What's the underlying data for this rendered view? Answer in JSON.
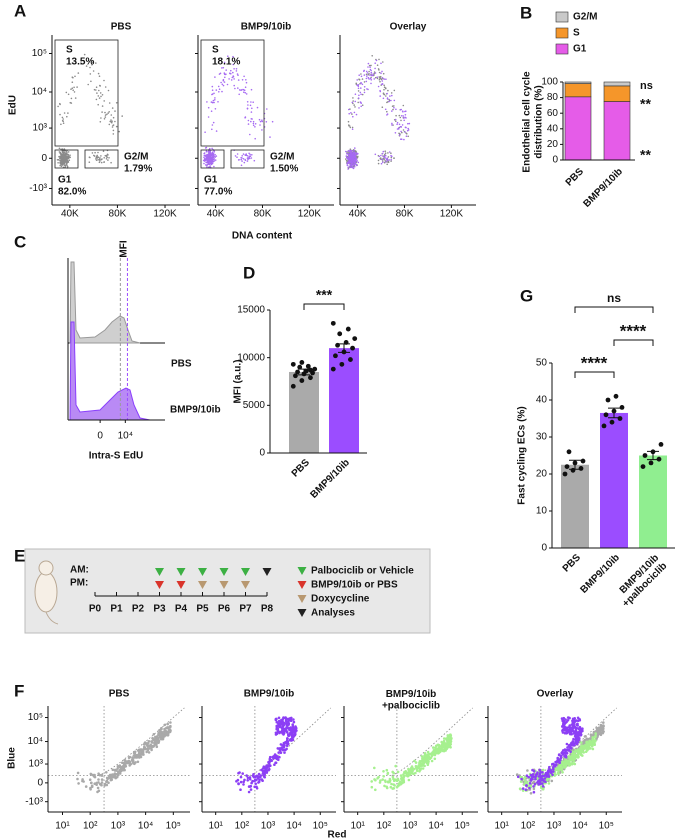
{
  "panel_labels": [
    "A",
    "B",
    "C",
    "D",
    "E",
    "F",
    "G"
  ],
  "chart_data": [
    {
      "type": "flow",
      "titles": [
        "PBS",
        "BMP9/10ib",
        "Overlay"
      ],
      "ylabel": "EdU",
      "xlabel": "DNA content",
      "colors": [
        "#8a8a8a",
        "#a66bf2"
      ],
      "ylim": [
        -3000,
        300000
      ],
      "yticks": [
        {
          "value": 100000,
          "label": "10⁵"
        },
        {
          "value": 10000,
          "label": "10⁴"
        },
        {
          "value": 1000,
          "label": "10³"
        },
        0,
        {
          "value": -1000,
          "label": "-10³"
        }
      ],
      "xlim": [
        25000,
        141000
      ],
      "xticks": [
        {
          "value": 40000,
          "label": "40K"
        },
        {
          "value": 80000,
          "label": "80K"
        },
        {
          "value": 120000,
          "label": "120K"
        }
      ],
      "gates": [
        {
          "names": [
            "S",
            "G1",
            "G2/M"
          ],
          "values": [
            13.5,
            82.0,
            1.79
          ],
          "value_labels": [
            "13.5%",
            "82.0%",
            "1.79%"
          ]
        },
        {
          "names": [
            "S",
            "G1",
            "G2/M"
          ],
          "values": [
            18.1,
            77.0,
            1.5
          ],
          "value_labels": [
            "18.1%",
            "77.0%",
            "1.50%"
          ]
        }
      ]
    },
    {
      "type": "stacked_bar",
      "categories": [
        "PBS",
        "BMP9/10ib"
      ],
      "series": [
        {
          "name": "G1",
          "color": "#e55ce8",
          "values": [
            81,
            75
          ]
        },
        {
          "name": "S",
          "color": "#f5962a",
          "values": [
            17,
            20
          ]
        },
        {
          "name": "G2/M",
          "color": "#c9c9c9",
          "values": [
            2,
            5
          ]
        }
      ],
      "ylim": [
        0,
        100
      ],
      "yticks": [
        0,
        20,
        40,
        60,
        80,
        100
      ],
      "ylabel": [
        "Endothelial cell cycle",
        "distribution (%)"
      ],
      "annotations": [
        "ns",
        "**",
        "**"
      ]
    },
    {
      "type": "histogram_overlay",
      "series": [
        {
          "name": "PBS",
          "color": "#9a9a9a"
        },
        {
          "name": "BMP9/10ib",
          "color": "#9b4dff"
        }
      ],
      "annotation": "MFI",
      "mfi": [
        4500,
        14000
      ],
      "xlabel": "Intra-S EdU",
      "xlim": [
        -30000,
        5000000
      ],
      "xticks": [
        0,
        {
          "value": 10000,
          "label": "10⁴"
        }
      ]
    },
    {
      "type": "bar_points",
      "categories": [
        "PBS",
        "BMP9/10ib"
      ],
      "values": [
        8500,
        11000
      ],
      "errors": [
        300,
        450
      ],
      "colors": [
        "#aaaaaa",
        "#9b4dff"
      ],
      "points": [
        [
          7000,
          7600,
          7900,
          8100,
          8300,
          8400,
          8500,
          8600,
          8800,
          9000,
          9100,
          9300,
          9500,
          8700
        ],
        [
          8800,
          9300,
          9800,
          10200,
          10600,
          11000,
          11300,
          11600,
          12000,
          12500,
          13000,
          13600
        ]
      ],
      "ylim": [
        0,
        15000
      ],
      "yticks": [
        0,
        5000,
        10000,
        15000
      ],
      "ylabel": "MFI (a.u.)",
      "annotations": [
        "***"
      ]
    },
    {
      "type": "bar_points",
      "categories": [
        "PBS",
        "BMP9/10ib",
        "BMP9/10ib\n+palbociclib"
      ],
      "values": [
        22.5,
        36.5,
        25
      ],
      "errors": [
        1.2,
        1.3,
        1.1
      ],
      "colors": [
        "#aaaaaa",
        "#9b4dff",
        "#90ee90"
      ],
      "points": [
        [
          20,
          21,
          21.5,
          22,
          23,
          23.5,
          26
        ],
        [
          33,
          34,
          35,
          36,
          37,
          38,
          40,
          41
        ],
        [
          22,
          23,
          24,
          25,
          26,
          28
        ]
      ],
      "ylim": [
        0,
        50
      ],
      "yticks": [
        0,
        10,
        20,
        30,
        40,
        50
      ],
      "ylabel": "Fast cycling ECs (%)",
      "annotations": [
        "ns",
        "****",
        "****"
      ]
    },
    {
      "type": "flow",
      "titles": [
        "PBS",
        "BMP9/10ib",
        "BMP9/10ib\n+palbociclib",
        "Overlay"
      ],
      "xlabel": "Red",
      "ylabel": "Blue",
      "colors": [
        "#a9a9a9",
        "#8c3ff5",
        "#a6f08f"
      ],
      "xscale": "log",
      "xlim": [
        3,
        400000
      ],
      "xticks": [
        {
          "value": 10,
          "label": "10¹"
        },
        {
          "value": 100,
          "label": "10²"
        },
        {
          "value": 1000,
          "label": "10³"
        },
        {
          "value": 10000,
          "label": "10⁴"
        },
        {
          "value": 100000,
          "label": "10⁵"
        }
      ],
      "ylim": [
        -3000,
        300000
      ],
      "yticks": [
        {
          "value": 100000,
          "label": "10⁵"
        },
        {
          "value": 10000,
          "label": "10⁴"
        },
        {
          "value": 1000,
          "label": "10³"
        },
        0,
        {
          "value": -1000,
          "label": "-10³"
        }
      ]
    }
  ],
  "diagram": {
    "rows": [
      "AM:",
      "PM:"
    ],
    "timepoints": [
      "P0",
      "P1",
      "P2",
      "P3",
      "P4",
      "P5",
      "P6",
      "P7",
      "P8"
    ],
    "legend": [
      {
        "label": "Palbociclib or Vehicle",
        "color": "#3cb043"
      },
      {
        "label": "BMP9/10ib or PBS",
        "color": "#d9342b"
      },
      {
        "label": "Doxycycline",
        "color": "#b89870"
      },
      {
        "label": "Analyses",
        "color": "#222222"
      }
    ],
    "am": [
      null,
      null,
      null,
      0,
      0,
      0,
      0,
      0,
      3
    ],
    "pm": [
      null,
      null,
      null,
      1,
      1,
      2,
      2,
      2,
      null
    ]
  }
}
